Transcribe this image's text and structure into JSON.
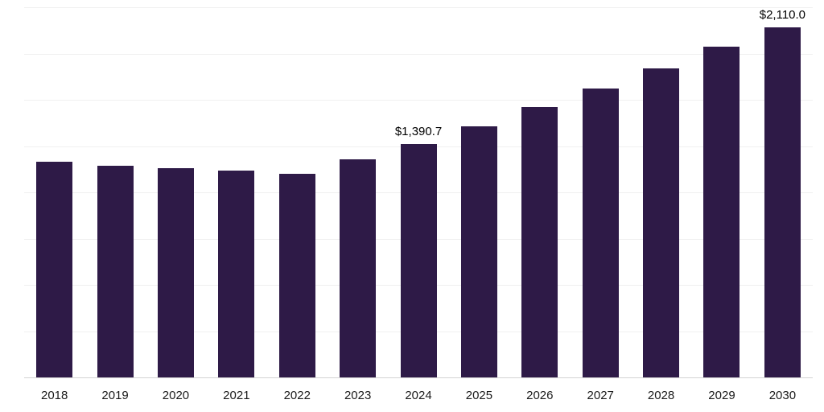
{
  "chart_data": {
    "type": "bar",
    "title": "",
    "categories": [
      "2018",
      "2019",
      "2020",
      "2021",
      "2022",
      "2023",
      "2024",
      "2025",
      "2026",
      "2027",
      "2028",
      "2029",
      "2030"
    ],
    "values": [
      1285,
      1262,
      1248,
      1232,
      1215,
      1300,
      1390.7,
      1495,
      1610,
      1720,
      1840,
      1970,
      2110
    ],
    "data_labels": [
      "",
      "",
      "",
      "",
      "",
      "",
      "$1,390.7",
      "",
      "",
      "",
      "",
      "",
      "$2,110.0"
    ],
    "ylim": [
      0,
      2200
    ],
    "xlabel": "",
    "ylabel": "",
    "grid": "horizontal",
    "grid_divisions": 8,
    "legend": "none",
    "bar_color": "#2e1a47",
    "gridline_color": "#f0f0f0",
    "axis_line_color": "#d4d4d4",
    "value_label_color": "#000000",
    "tick_label_color": "#1a1a1a"
  }
}
